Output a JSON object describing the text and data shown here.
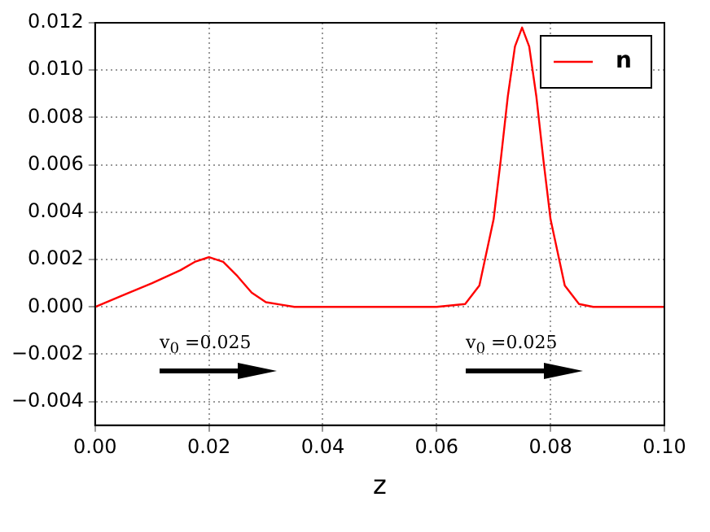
{
  "chart_data": {
    "type": "line",
    "xlabel": "z",
    "x": [
      0,
      0.005,
      0.01,
      0.015,
      0.0175,
      0.02,
      0.0225,
      0.025,
      0.0275,
      0.03,
      0.0325,
      0.035,
      0.04,
      0.05,
      0.06,
      0.065,
      0.0675,
      0.07,
      0.07125,
      0.0725,
      0.07375,
      0.075,
      0.07625,
      0.0775,
      0.07875,
      0.08,
      0.0825,
      0.085,
      0.0875,
      0.09,
      0.1
    ],
    "series": [
      {
        "name": "n",
        "color": "#ff0000",
        "values": [
          0,
          0.0005,
          0.001,
          0.00155,
          0.0019,
          0.0021,
          0.0019,
          0.0013,
          0.0006,
          0.0002,
          0.0001,
          0,
          0,
          0,
          0,
          0.00012,
          0.0009,
          0.0037,
          0.0062,
          0.0089,
          0.011,
          0.0118,
          0.011,
          0.0089,
          0.0062,
          0.0037,
          0.0009,
          0.00012,
          0,
          0,
          0
        ]
      }
    ],
    "xlim": [
      0,
      0.1
    ],
    "xticks": [
      {
        "value": 0,
        "label": "0.00"
      },
      {
        "value": 0.02,
        "label": "0.02"
      },
      {
        "value": 0.04,
        "label": "0.04"
      },
      {
        "value": 0.06,
        "label": "0.06"
      },
      {
        "value": 0.08,
        "label": "0.08"
      },
      {
        "value": 0.1,
        "label": "0.10"
      }
    ],
    "ylim": [
      -0.005,
      0.012
    ],
    "yticks": [
      {
        "value": -0.004,
        "label": "−0.004"
      },
      {
        "value": -0.002,
        "label": "−0.002"
      },
      {
        "value": 0,
        "label": "0.000"
      },
      {
        "value": 0.002,
        "label": "0.002"
      },
      {
        "value": 0.004,
        "label": "0.004"
      },
      {
        "value": 0.006,
        "label": "0.006"
      },
      {
        "value": 0.008,
        "label": "0.008"
      },
      {
        "value": 0.01,
        "label": "0.010"
      },
      {
        "value": 0.012,
        "label": "0.012"
      }
    ],
    "annotations": [
      "v$_{0}$ =0.025",
      "v$_{0}$ =0.025"
    ],
    "grid": true,
    "legend": "top right",
    "marker": "none",
    "line_style": "solid"
  }
}
